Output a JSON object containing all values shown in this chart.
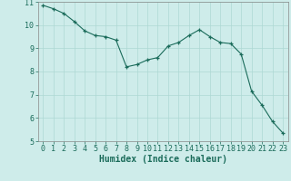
{
  "x": [
    0,
    1,
    2,
    3,
    4,
    5,
    6,
    7,
    8,
    9,
    10,
    11,
    12,
    13,
    14,
    15,
    16,
    17,
    18,
    19,
    20,
    21,
    22,
    23
  ],
  "y": [
    10.85,
    10.7,
    10.5,
    10.15,
    9.75,
    9.55,
    9.5,
    9.35,
    8.2,
    8.3,
    8.5,
    8.6,
    9.1,
    9.25,
    9.55,
    9.8,
    9.5,
    9.25,
    9.2,
    8.75,
    7.15,
    6.55,
    5.85,
    5.35
  ],
  "xlabel": "Humidex (Indice chaleur)",
  "line_color": "#1a6b5a",
  "bg_color": "#ceecea",
  "grid_color": "#aed8d4",
  "marker": "+",
  "ylim": [
    5,
    11
  ],
  "xlim": [
    -0.5,
    23.5
  ],
  "yticks": [
    5,
    6,
    7,
    8,
    9,
    10,
    11
  ],
  "xticks": [
    0,
    1,
    2,
    3,
    4,
    5,
    6,
    7,
    8,
    9,
    10,
    11,
    12,
    13,
    14,
    15,
    16,
    17,
    18,
    19,
    20,
    21,
    22,
    23
  ],
  "xlabel_fontsize": 7,
  "tick_fontsize": 6
}
